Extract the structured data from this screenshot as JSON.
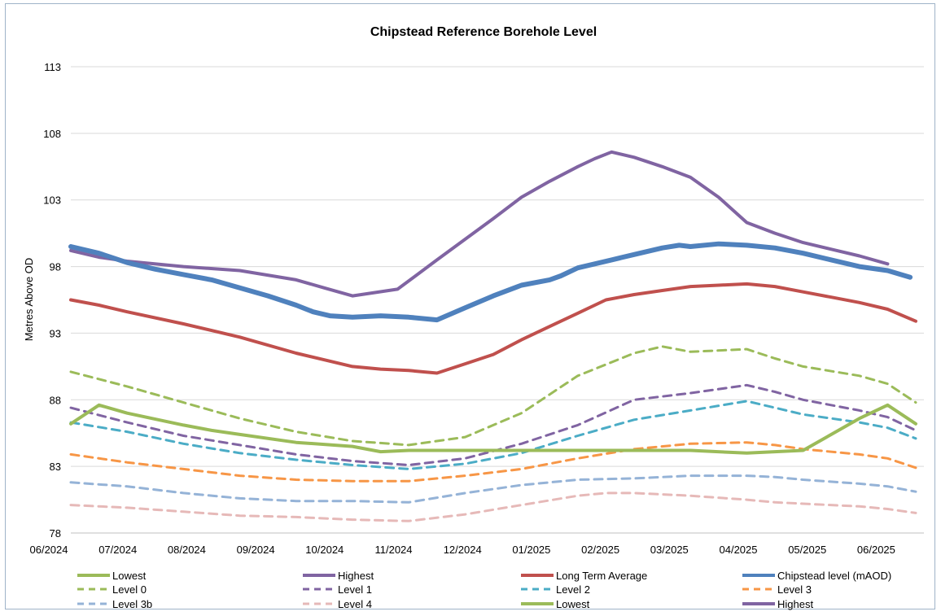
{
  "chart_data": {
    "type": "line",
    "title": "Chipstead Reference Borehole Level",
    "xlabel": "",
    "ylabel": "Metres Above OD",
    "ylim": [
      78,
      113
    ],
    "yticks": [
      78,
      83,
      88,
      93,
      98,
      103,
      108,
      113
    ],
    "xticks": [
      "06/2024",
      "07/2024",
      "08/2024",
      "09/2024",
      "10/2024",
      "11/2024",
      "12/2024",
      "01/2025",
      "02/2025",
      "03/2025",
      "04/2025",
      "05/2025",
      "06/2025"
    ],
    "grid": "horizontal",
    "legend_position": "bottom",
    "series": [
      {
        "name": "Highest",
        "style": "solid",
        "color": "#8064a2",
        "points": [
          [
            0,
            99.2
          ],
          [
            0.5,
            98.7
          ],
          [
            1,
            98.4
          ],
          [
            2,
            98.0
          ],
          [
            3,
            97.7
          ],
          [
            4,
            97.0
          ],
          [
            4.5,
            96.4
          ],
          [
            5,
            95.8
          ],
          [
            5.8,
            96.3
          ],
          [
            6.5,
            98.5
          ],
          [
            7.5,
            101.6
          ],
          [
            8,
            103.2
          ],
          [
            8.5,
            104.4
          ],
          [
            9,
            105.5
          ],
          [
            9.3,
            106.1
          ],
          [
            9.6,
            106.6
          ],
          [
            10,
            106.2
          ],
          [
            10.5,
            105.5
          ],
          [
            11,
            104.7
          ],
          [
            11.5,
            103.2
          ],
          [
            12,
            101.3
          ],
          [
            12.5,
            100.5
          ],
          [
            13,
            99.8
          ],
          [
            13.5,
            99.3
          ],
          [
            14,
            98.8
          ],
          [
            14.5,
            98.2
          ]
        ]
      },
      {
        "name": "Chipstead level (mAOD)",
        "style": "solid",
        "color": "#4f81bd",
        "points": [
          [
            0,
            99.5
          ],
          [
            0.5,
            99.0
          ],
          [
            1,
            98.3
          ],
          [
            1.5,
            97.8
          ],
          [
            2,
            97.4
          ],
          [
            2.5,
            97.0
          ],
          [
            3,
            96.4
          ],
          [
            3.5,
            95.8
          ],
          [
            4,
            95.1
          ],
          [
            4.3,
            94.6
          ],
          [
            4.6,
            94.3
          ],
          [
            5,
            94.2
          ],
          [
            5.5,
            94.3
          ],
          [
            6,
            94.2
          ],
          [
            6.5,
            94.0
          ],
          [
            7,
            94.9
          ],
          [
            7.5,
            95.8
          ],
          [
            8,
            96.6
          ],
          [
            8.5,
            97.0
          ],
          [
            8.7,
            97.3
          ],
          [
            9,
            97.9
          ],
          [
            9.3,
            98.2
          ],
          [
            9.6,
            98.5
          ],
          [
            10,
            98.9
          ],
          [
            10.5,
            99.4
          ],
          [
            10.8,
            99.6
          ],
          [
            11,
            99.5
          ],
          [
            11.5,
            99.7
          ],
          [
            12,
            99.6
          ],
          [
            12.5,
            99.4
          ],
          [
            13,
            99.0
          ],
          [
            13.5,
            98.5
          ],
          [
            14,
            98.0
          ],
          [
            14.5,
            97.7
          ],
          [
            14.9,
            97.2
          ]
        ]
      },
      {
        "name": "Long Term Average",
        "style": "solid",
        "color": "#c0504d",
        "points": [
          [
            0,
            95.5
          ],
          [
            0.5,
            95.1
          ],
          [
            1,
            94.6
          ],
          [
            2,
            93.7
          ],
          [
            3,
            92.7
          ],
          [
            4,
            91.5
          ],
          [
            4.5,
            91.0
          ],
          [
            5,
            90.5
          ],
          [
            5.5,
            90.3
          ],
          [
            6,
            90.2
          ],
          [
            6.5,
            90.0
          ],
          [
            7,
            90.7
          ],
          [
            7.5,
            91.4
          ],
          [
            8,
            92.5
          ],
          [
            8.5,
            93.5
          ],
          [
            9,
            94.5
          ],
          [
            9.5,
            95.5
          ],
          [
            10,
            95.9
          ],
          [
            10.5,
            96.2
          ],
          [
            11,
            96.5
          ],
          [
            11.5,
            96.6
          ],
          [
            12,
            96.7
          ],
          [
            12.5,
            96.5
          ],
          [
            13,
            96.1
          ],
          [
            13.5,
            95.7
          ],
          [
            14,
            95.3
          ],
          [
            14.5,
            94.8
          ],
          [
            15,
            93.9
          ]
        ]
      },
      {
        "name": "Level 0",
        "style": "dashed",
        "color": "#9bbb59",
        "points": [
          [
            0,
            90.1
          ],
          [
            1,
            89.0
          ],
          [
            2,
            87.8
          ],
          [
            3,
            86.6
          ],
          [
            4,
            85.6
          ],
          [
            5,
            84.9
          ],
          [
            6,
            84.6
          ],
          [
            7,
            85.2
          ],
          [
            8,
            87.0
          ],
          [
            9,
            89.8
          ],
          [
            10,
            91.5
          ],
          [
            10.5,
            92.0
          ],
          [
            11,
            91.6
          ],
          [
            12,
            91.8
          ],
          [
            12.5,
            91.1
          ],
          [
            13,
            90.5
          ],
          [
            14,
            89.8
          ],
          [
            14.5,
            89.2
          ],
          [
            15,
            87.8
          ]
        ]
      },
      {
        "name": "Level 1",
        "style": "dashed",
        "color": "#8064a2",
        "points": [
          [
            0,
            87.4
          ],
          [
            1,
            86.3
          ],
          [
            2,
            85.3
          ],
          [
            3,
            84.6
          ],
          [
            4,
            83.9
          ],
          [
            5,
            83.4
          ],
          [
            6,
            83.1
          ],
          [
            7,
            83.6
          ],
          [
            8,
            84.7
          ],
          [
            9,
            86.1
          ],
          [
            10,
            88.0
          ],
          [
            11,
            88.5
          ],
          [
            12,
            89.1
          ],
          [
            12.5,
            88.6
          ],
          [
            13,
            88.0
          ],
          [
            14,
            87.2
          ],
          [
            14.5,
            86.7
          ],
          [
            15,
            85.7
          ]
        ]
      },
      {
        "name": "Level 2",
        "style": "dashed",
        "color": "#4bacc6",
        "points": [
          [
            0,
            86.3
          ],
          [
            1,
            85.6
          ],
          [
            2,
            84.7
          ],
          [
            3,
            84.0
          ],
          [
            4,
            83.5
          ],
          [
            5,
            83.1
          ],
          [
            6,
            82.8
          ],
          [
            7,
            83.2
          ],
          [
            8,
            84.0
          ],
          [
            9,
            85.3
          ],
          [
            10,
            86.5
          ],
          [
            11,
            87.2
          ],
          [
            12,
            87.9
          ],
          [
            12.5,
            87.4
          ],
          [
            13,
            86.9
          ],
          [
            14,
            86.3
          ],
          [
            14.5,
            85.9
          ],
          [
            15,
            85.1
          ]
        ]
      },
      {
        "name": "Level 3",
        "style": "dashed",
        "color": "#f79646",
        "points": [
          [
            0,
            83.9
          ],
          [
            1,
            83.3
          ],
          [
            2,
            82.8
          ],
          [
            3,
            82.3
          ],
          [
            4,
            82.0
          ],
          [
            5,
            81.9
          ],
          [
            6,
            81.9
          ],
          [
            7,
            82.3
          ],
          [
            8,
            82.8
          ],
          [
            9,
            83.6
          ],
          [
            10,
            84.3
          ],
          [
            11,
            84.7
          ],
          [
            12,
            84.8
          ],
          [
            12.5,
            84.6
          ],
          [
            13,
            84.3
          ],
          [
            14,
            83.9
          ],
          [
            14.5,
            83.6
          ],
          [
            15,
            82.9
          ]
        ]
      },
      {
        "name": "Level 3b",
        "style": "dashed",
        "color": "#95b3d7",
        "points": [
          [
            0,
            81.8
          ],
          [
            1,
            81.5
          ],
          [
            2,
            81.0
          ],
          [
            3,
            80.6
          ],
          [
            4,
            80.4
          ],
          [
            5,
            80.4
          ],
          [
            6,
            80.3
          ],
          [
            7,
            81.0
          ],
          [
            8,
            81.6
          ],
          [
            9,
            82.0
          ],
          [
            10,
            82.1
          ],
          [
            11,
            82.3
          ],
          [
            12,
            82.3
          ],
          [
            12.5,
            82.2
          ],
          [
            13,
            82.0
          ],
          [
            14,
            81.7
          ],
          [
            14.5,
            81.5
          ],
          [
            15,
            81.1
          ]
        ]
      },
      {
        "name": "Level 4",
        "style": "dashed",
        "color": "#e6b9b8",
        "points": [
          [
            0,
            80.1
          ],
          [
            1,
            79.9
          ],
          [
            2,
            79.6
          ],
          [
            3,
            79.3
          ],
          [
            4,
            79.2
          ],
          [
            5,
            79.0
          ],
          [
            6,
            78.9
          ],
          [
            7,
            79.4
          ],
          [
            8,
            80.1
          ],
          [
            9,
            80.8
          ],
          [
            9.5,
            81.0
          ],
          [
            10,
            81.0
          ],
          [
            11,
            80.8
          ],
          [
            12,
            80.5
          ],
          [
            12.5,
            80.3
          ],
          [
            13,
            80.2
          ],
          [
            14,
            80.0
          ],
          [
            14.5,
            79.8
          ],
          [
            15,
            79.5
          ]
        ]
      },
      {
        "name": "Lowest",
        "style": "solid",
        "color": "#9bbb59",
        "points": [
          [
            0,
            86.2
          ],
          [
            0.5,
            87.6
          ],
          [
            1,
            87.0
          ],
          [
            2,
            86.1
          ],
          [
            2.5,
            85.7
          ],
          [
            3,
            85.4
          ],
          [
            4,
            84.8
          ],
          [
            5,
            84.5
          ],
          [
            5.5,
            84.1
          ],
          [
            6,
            84.2
          ],
          [
            7,
            84.2
          ],
          [
            8,
            84.2
          ],
          [
            9,
            84.2
          ],
          [
            10,
            84.2
          ],
          [
            11,
            84.2
          ],
          [
            12,
            84.0
          ],
          [
            12.5,
            84.1
          ],
          [
            13,
            84.2
          ],
          [
            13.5,
            85.4
          ],
          [
            14,
            86.6
          ],
          [
            14.5,
            87.6
          ],
          [
            15,
            86.2
          ]
        ]
      }
    ]
  },
  "legend": [
    {
      "label": "Lowest",
      "style": "solid",
      "color": "#9bbb59"
    },
    {
      "label": "Highest",
      "style": "solid",
      "color": "#8064a2"
    },
    {
      "label": "Long Term Average",
      "style": "solid",
      "color": "#c0504d"
    },
    {
      "label": "Chipstead level (mAOD)",
      "style": "solid",
      "color": "#4f81bd"
    },
    {
      "label": "Level 0",
      "style": "dashed",
      "color": "#9bbb59"
    },
    {
      "label": "Level 1",
      "style": "dashed",
      "color": "#8064a2"
    },
    {
      "label": "Level 2",
      "style": "dashed",
      "color": "#4bacc6"
    },
    {
      "label": "Level 3",
      "style": "dashed",
      "color": "#f79646"
    },
    {
      "label": "Level 3b",
      "style": "dashed",
      "color": "#95b3d7"
    },
    {
      "label": "Level 4",
      "style": "dashed",
      "color": "#e6b9b8"
    },
    {
      "label": "Lowest",
      "style": "solid",
      "color": "#9bbb59"
    },
    {
      "label": "Highest",
      "style": "solid",
      "color": "#8064a2"
    }
  ]
}
